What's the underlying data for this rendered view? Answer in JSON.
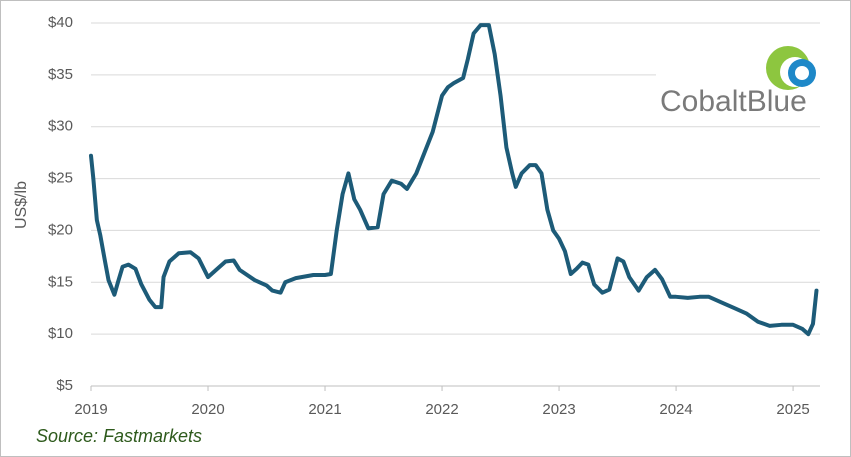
{
  "chart_data": {
    "type": "line",
    "y_label": "US$/lb",
    "source": "Source: Fastmarkets",
    "logo": "CobaltBlue",
    "grid": true,
    "xlim": [
      2019,
      2025.23
    ],
    "xticks": [
      2019,
      2020,
      2021,
      2022,
      2023,
      2024,
      2025
    ],
    "ylim": [
      5,
      40
    ],
    "yticks": [
      {
        "value": 5,
        "label": "$5"
      },
      {
        "value": 10,
        "label": "$10"
      },
      {
        "value": 15,
        "label": "$15"
      },
      {
        "value": 20,
        "label": "$20"
      },
      {
        "value": 25,
        "label": "$25"
      },
      {
        "value": 30,
        "label": "$30"
      },
      {
        "value": 35,
        "label": "$35"
      },
      {
        "value": 40,
        "label": "$40"
      }
    ],
    "x": [
      2019.0,
      2019.02,
      2019.05,
      2019.08,
      2019.12,
      2019.15,
      2019.2,
      2019.23,
      2019.27,
      2019.32,
      2019.38,
      2019.43,
      2019.5,
      2019.55,
      2019.6,
      2019.62,
      2019.67,
      2019.75,
      2019.85,
      2019.92,
      2020.0,
      2020.08,
      2020.15,
      2020.22,
      2020.27,
      2020.4,
      2020.5,
      2020.55,
      2020.62,
      2020.66,
      2020.75,
      2020.9,
      2021.0,
      2021.05,
      2021.1,
      2021.15,
      2021.2,
      2021.25,
      2021.3,
      2021.37,
      2021.45,
      2021.5,
      2021.57,
      2021.65,
      2021.7,
      2021.78,
      2021.85,
      2021.92,
      2022.0,
      2022.05,
      2022.1,
      2022.18,
      2022.22,
      2022.27,
      2022.33,
      2022.4,
      2022.45,
      2022.5,
      2022.55,
      2022.6,
      2022.63,
      2022.68,
      2022.75,
      2022.8,
      2022.85,
      2022.9,
      2022.95,
      2023.0,
      2023.05,
      2023.1,
      2023.15,
      2023.2,
      2023.25,
      2023.3,
      2023.37,
      2023.43,
      2023.5,
      2023.55,
      2023.6,
      2023.68,
      2023.75,
      2023.82,
      2023.88,
      2023.95,
      2024.0,
      2024.1,
      2024.2,
      2024.28,
      2024.4,
      2024.5,
      2024.6,
      2024.7,
      2024.8,
      2024.9,
      2025.0,
      2025.08,
      2025.13,
      2025.17,
      2025.2
    ],
    "series": [
      {
        "name": "Cobalt",
        "color": "#1d5b78",
        "values": [
          27.2,
          25,
          21,
          19.5,
          17,
          15.2,
          13.8,
          15,
          16.5,
          16.7,
          16.3,
          14.8,
          13.3,
          12.6,
          12.6,
          15.5,
          17,
          17.8,
          17.9,
          17.3,
          15.5,
          16.3,
          17,
          17.1,
          16.2,
          15.2,
          14.7,
          14.2,
          14,
          15,
          15.4,
          15.7,
          15.7,
          15.8,
          20,
          23.5,
          25.5,
          23,
          22,
          20.2,
          20.3,
          23.5,
          24.8,
          24.5,
          24,
          25.5,
          27.5,
          29.5,
          33,
          33.8,
          34.2,
          34.7,
          36.5,
          39,
          39.8,
          39.8,
          37,
          33,
          28,
          25.5,
          24.2,
          25.5,
          26.3,
          26.3,
          25.5,
          22,
          20,
          19.2,
          18,
          15.8,
          16.3,
          16.9,
          16.7,
          14.8,
          14,
          14.3,
          17.3,
          17,
          15.5,
          14.2,
          15.5,
          16.2,
          15.3,
          13.6,
          13.6,
          13.5,
          13.6,
          13.6,
          13,
          12.5,
          12,
          11.2,
          10.8,
          10.9,
          10.9,
          10.5,
          10,
          11,
          14.2
        ]
      }
    ]
  }
}
